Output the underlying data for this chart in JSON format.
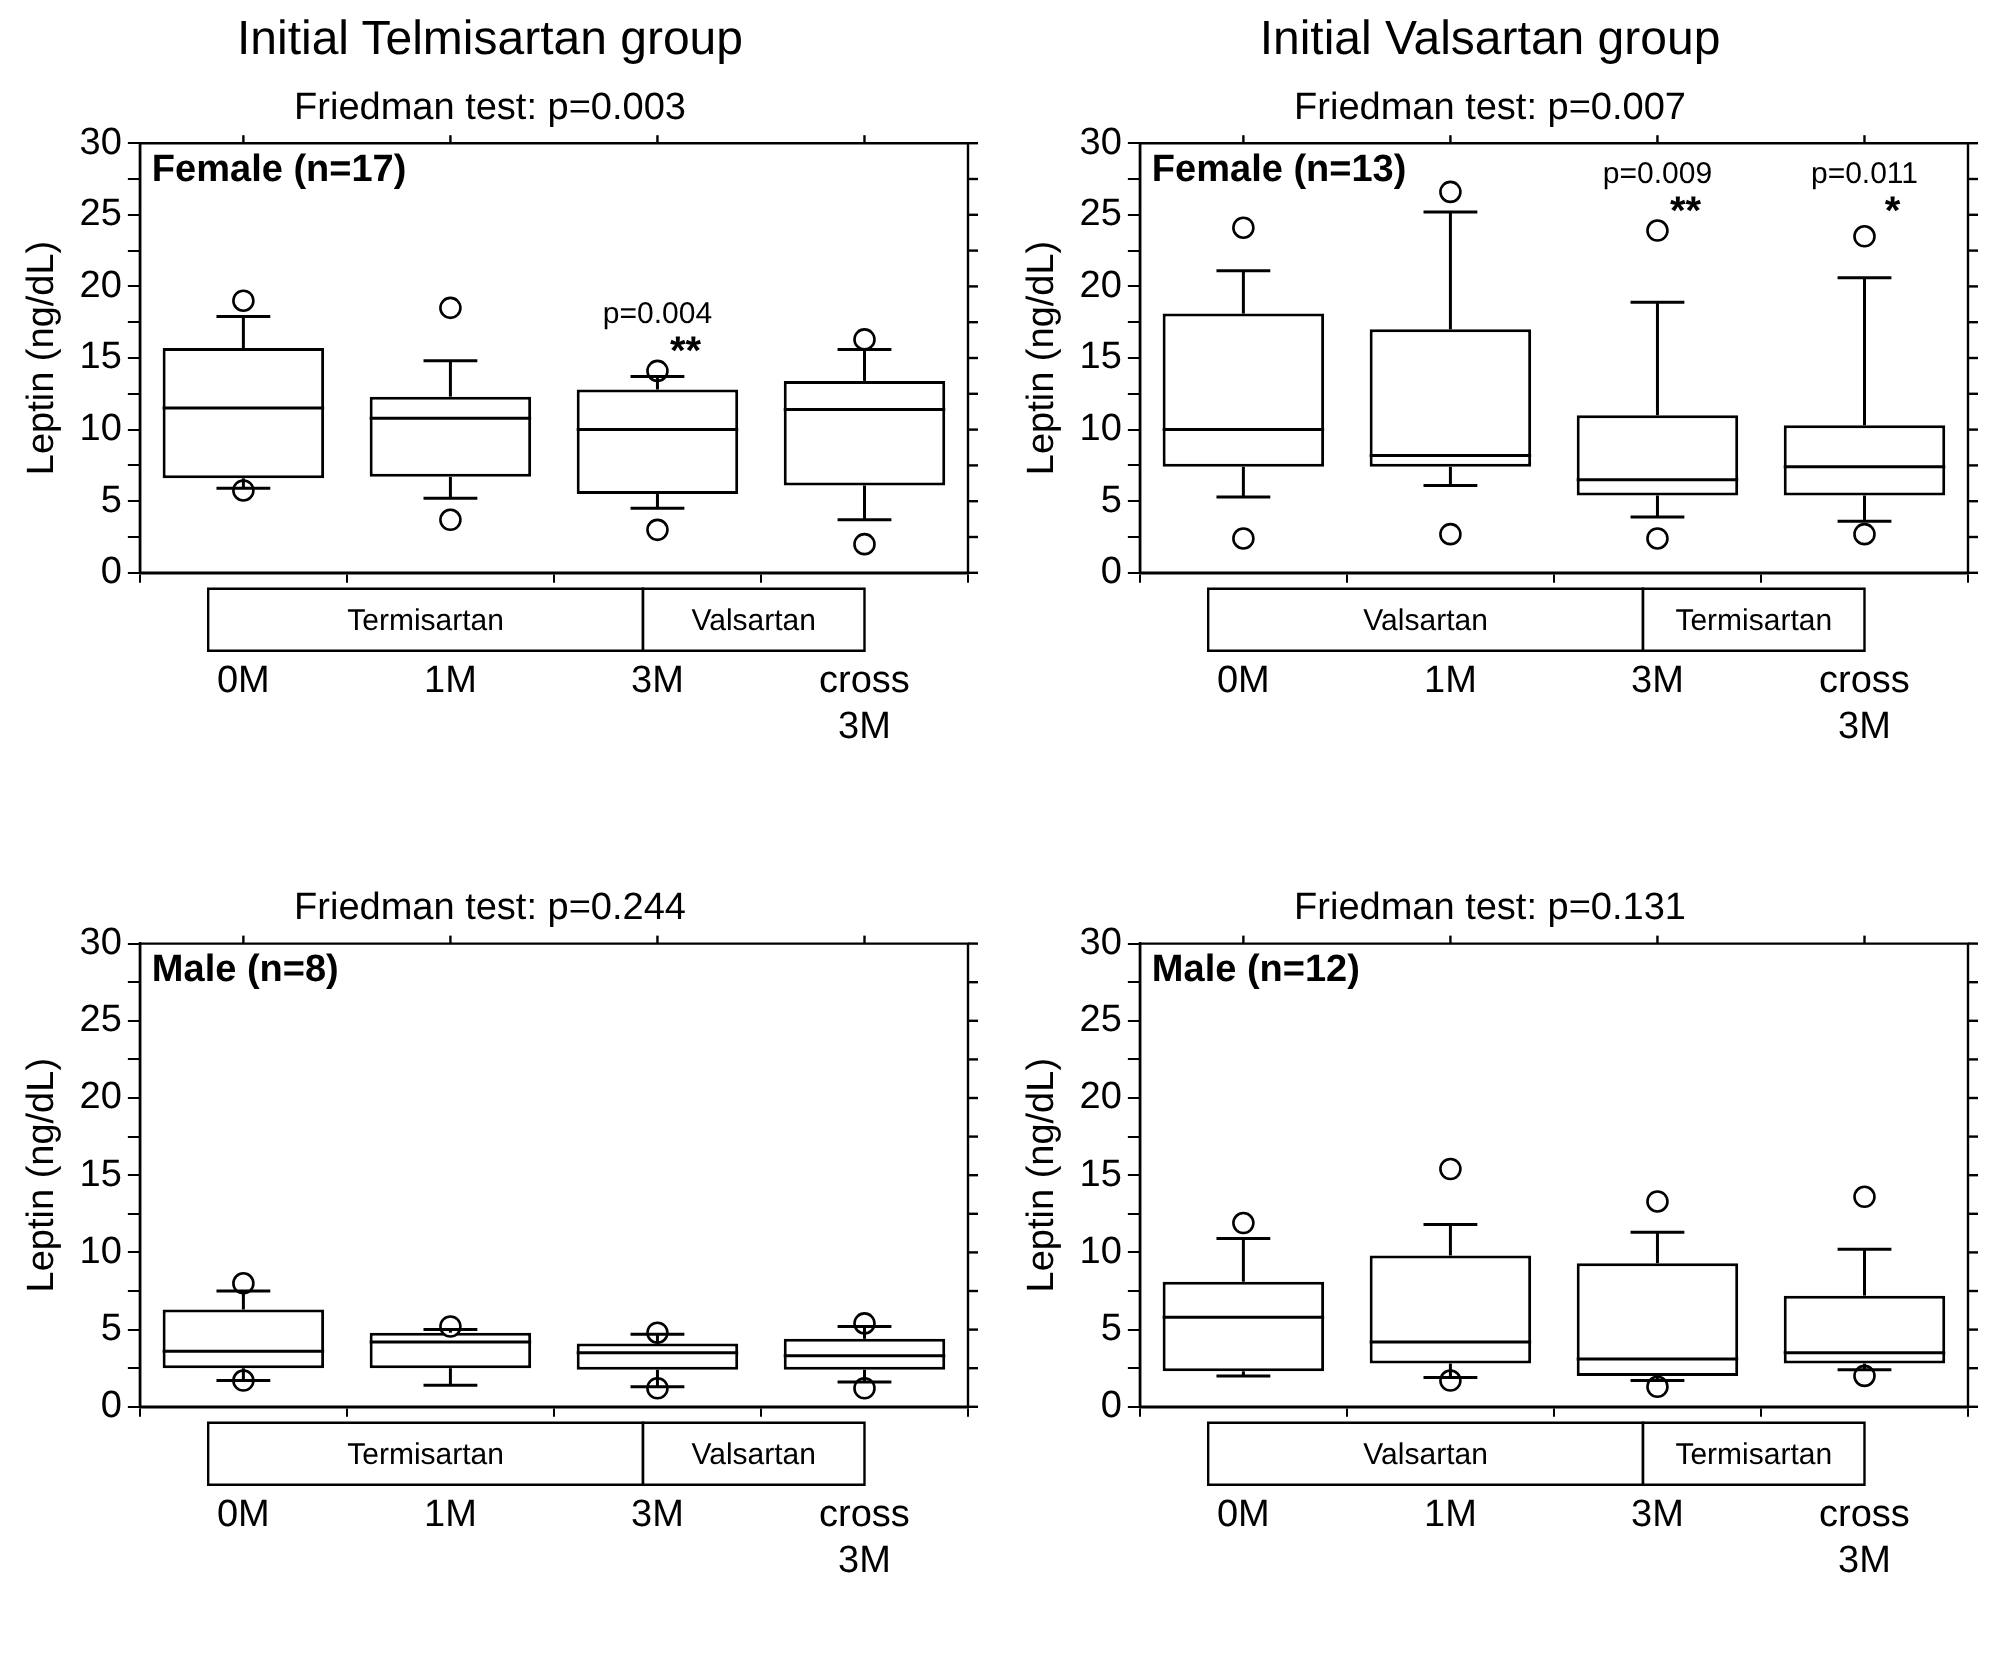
{
  "chart_data": [
    {
      "type": "box",
      "title": "Initial Telmisartan group",
      "subtitle": "Friedman test: p=0.003",
      "ylabel": "Leptin (ng/dL)",
      "categories": [
        "0M",
        "1M",
        "3M",
        "cross 3M"
      ],
      "ylim": [
        0,
        30
      ],
      "yticks": [
        0,
        {
          "value": 2.5,
          "label": null
        },
        5,
        {
          "value": 7.5,
          "label": null
        },
        10,
        {
          "value": 12.5,
          "label": null
        },
        15,
        {
          "value": 17.5,
          "label": null
        },
        20,
        {
          "value": 22.5,
          "label": null
        },
        25,
        {
          "value": 27.5,
          "label": null
        },
        30
      ],
      "marker": "circle",
      "boxes": [
        {
          "low": 5.9,
          "q1": 6.6,
          "median": 11.5,
          "q3": 15.7,
          "high": 17.9,
          "outliers": [
            19.0,
            5.75
          ]
        },
        {
          "low": 5.2,
          "q1": 6.7,
          "median": 10.8,
          "q3": 12.3,
          "high": 14.8,
          "outliers": [
            18.5,
            3.7
          ]
        },
        {
          "low": 4.5,
          "q1": 5.5,
          "median": 10.0,
          "q3": 12.8,
          "high": 13.7,
          "outliers": [
            14.1,
            3.0
          ]
        },
        {
          "low": 3.7,
          "q1": 6.1,
          "median": 11.4,
          "q3": 13.4,
          "high": 15.6,
          "outliers": [
            16.3,
            2.0
          ]
        }
      ],
      "annotations": [
        "Female (n=17)",
        "Termisartan",
        "Valsartan",
        "p=0.004",
        "**"
      ]
    },
    {
      "type": "box",
      "title": "Initial Valsartan group",
      "subtitle": "Friedman test: p=0.007",
      "ylabel": "Leptin (ng/dL)",
      "categories": [
        "0M",
        "1M",
        "3M",
        "cross 3M"
      ],
      "ylim": [
        0,
        30
      ],
      "yticks": [
        0,
        {
          "value": 2.5,
          "label": null
        },
        5,
        {
          "value": 7.5,
          "label": null
        },
        10,
        {
          "value": 12.5,
          "label": null
        },
        15,
        {
          "value": 17.5,
          "label": null
        },
        20,
        {
          "value": 22.5,
          "label": null
        },
        25,
        {
          "value": 27.5,
          "label": null
        },
        30
      ],
      "marker": "circle",
      "boxes": [
        {
          "low": 5.3,
          "q1": 7.4,
          "median": 10.0,
          "q3": 18.1,
          "high": 21.1,
          "outliers": [
            24.1,
            2.4
          ]
        },
        {
          "low": 6.1,
          "q1": 7.4,
          "median": 8.2,
          "q3": 17.0,
          "high": 25.2,
          "outliers": [
            26.6,
            2.7
          ]
        },
        {
          "low": 3.9,
          "q1": 5.4,
          "median": 6.5,
          "q3": 11.0,
          "high": 18.9,
          "outliers": [
            23.9,
            2.4
          ]
        },
        {
          "low": 3.6,
          "q1": 5.4,
          "median": 7.4,
          "q3": 10.3,
          "high": 20.6,
          "outliers": [
            23.5,
            2.7
          ]
        }
      ],
      "annotations": [
        "Female (n=13)",
        "Valsartan",
        "Termisartan",
        "p=0.009",
        "**",
        "p=0.011",
        "*"
      ]
    },
    {
      "type": "box",
      "title": "Friedman test: p=0.244",
      "ylabel": "Leptin (ng/dL)",
      "categories": [
        "0M",
        "1M",
        "3M",
        "cross 3M"
      ],
      "ylim": [
        0,
        30
      ],
      "yticks": [
        0,
        {
          "value": 2.5,
          "label": null
        },
        5,
        {
          "value": 7.5,
          "label": null
        },
        10,
        {
          "value": 12.5,
          "label": null
        },
        15,
        {
          "value": 17.5,
          "label": null
        },
        20,
        {
          "value": 22.5,
          "label": null
        },
        25,
        {
          "value": 27.5,
          "label": null
        },
        30
      ],
      "marker": "circle",
      "boxes": [
        {
          "low": 1.7,
          "q1": 2.5,
          "median": 3.6,
          "q3": 6.3,
          "high": 7.5,
          "outliers": [
            8.0,
            1.7
          ]
        },
        {
          "low": 1.4,
          "q1": 2.5,
          "median": 4.2,
          "q3": 4.8,
          "high": 5.0,
          "outliers": [
            5.2
          ]
        },
        {
          "low": 1.3,
          "q1": 2.4,
          "median": 3.5,
          "q3": 4.1,
          "high": 4.7,
          "outliers": [
            4.8,
            1.2
          ]
        },
        {
          "low": 1.6,
          "q1": 2.4,
          "median": 3.3,
          "q3": 4.4,
          "high": 5.2,
          "outliers": [
            5.4,
            1.2
          ]
        }
      ],
      "annotations": [
        "Male (n=8)",
        "Termisartan",
        "Valsartan"
      ]
    },
    {
      "type": "box",
      "title": "Friedman test: p=0.131",
      "ylabel": "Leptin (ng/dL)",
      "categories": [
        "0M",
        "1M",
        "3M",
        "cross 3M"
      ],
      "ylim": [
        0,
        30
      ],
      "yticks": [
        0,
        {
          "value": 2.5,
          "label": null
        },
        5,
        {
          "value": 7.5,
          "label": null
        },
        10,
        {
          "value": 12.5,
          "label": null
        },
        15,
        {
          "value": 17.5,
          "label": null
        },
        20,
        {
          "value": 22.5,
          "label": null
        },
        25,
        {
          "value": 27.5,
          "label": null
        },
        30
      ],
      "marker": "circle",
      "boxes": [
        {
          "low": 2.0,
          "q1": 2.3,
          "median": 5.8,
          "q3": 8.1,
          "high": 10.9,
          "outliers": [
            11.9
          ]
        },
        {
          "low": 1.9,
          "q1": 2.8,
          "median": 4.2,
          "q3": 9.8,
          "high": 11.8,
          "outliers": [
            15.4,
            1.7
          ]
        },
        {
          "low": 1.7,
          "q1": 2.0,
          "median": 3.1,
          "q3": 9.3,
          "high": 11.3,
          "outliers": [
            13.3,
            1.3
          ]
        },
        {
          "low": 2.4,
          "q1": 2.8,
          "median": 3.5,
          "q3": 7.2,
          "high": 10.2,
          "outliers": [
            13.6,
            2.0
          ]
        }
      ],
      "annotations": [
        "Male (n=12)",
        "Valsartan",
        "Termisartan"
      ]
    }
  ]
}
